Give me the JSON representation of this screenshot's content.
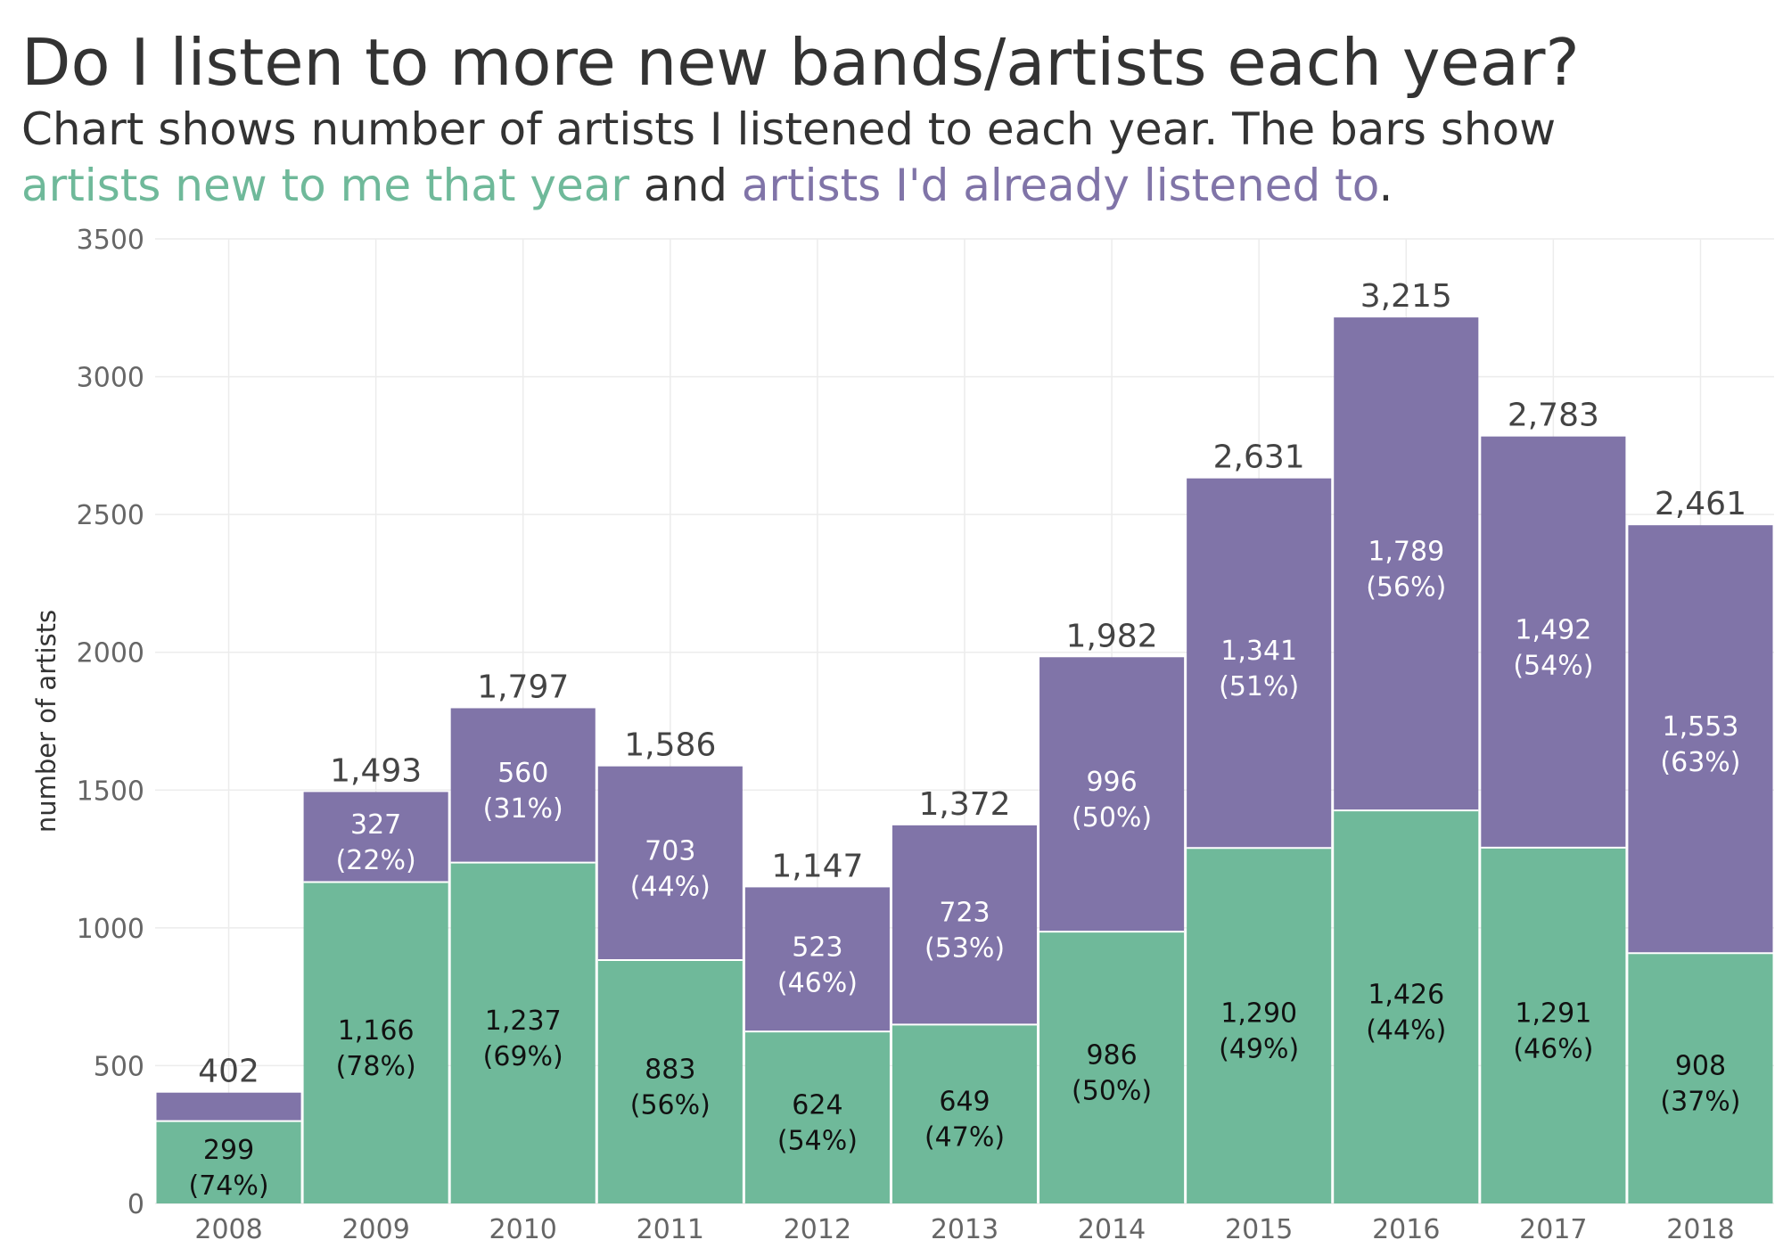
{
  "title": "Do I listen to more new bands/artists each year?",
  "subtitle_line1": "Chart shows number of artists I listened to each year. The bars show",
  "subtitle_line2": {
    "part1": "artists new to me that year",
    "part2": " and ",
    "part3": "artists I'd already listened to",
    "part4": "."
  },
  "colors": {
    "new": "#6fb99a",
    "old": "#8074a8",
    "text_dark": "#333333",
    "label_on_new": "#111111",
    "label_on_old": "#ffffff"
  },
  "chart_data": {
    "type": "bar",
    "stacked": true,
    "categories": [
      "2008",
      "2009",
      "2010",
      "2011",
      "2012",
      "2013",
      "2014",
      "2015",
      "2016",
      "2017",
      "2018"
    ],
    "series": [
      {
        "name": "artists new to me that year",
        "values": [
          299,
          1166,
          1237,
          883,
          624,
          649,
          986,
          1290,
          1426,
          1291,
          908
        ],
        "labels": [
          "299",
          "1,166",
          "1,237",
          "883",
          "624",
          "649",
          "986",
          "1,290",
          "1,426",
          "1,291",
          "908"
        ],
        "pct": [
          "(74%)",
          "(78%)",
          "(69%)",
          "(56%)",
          "(54%)",
          "(47%)",
          "(50%)",
          "(49%)",
          "(44%)",
          "(46%)",
          "(37%)"
        ]
      },
      {
        "name": "artists I'd already listened to",
        "values": [
          103,
          327,
          560,
          703,
          523,
          723,
          996,
          1341,
          1789,
          1492,
          1553
        ],
        "labels": [
          "",
          "327",
          "560",
          "703",
          "523",
          "723",
          "996",
          "1,341",
          "1,789",
          "1,492",
          "1,553"
        ],
        "pct": [
          "",
          "(22%)",
          "(31%)",
          "(44%)",
          "(46%)",
          "(53%)",
          "(50%)",
          "(51%)",
          "(56%)",
          "(54%)",
          "(63%)"
        ]
      }
    ],
    "totals": [
      "402",
      "1,493",
      "1,797",
      "1,586",
      "1,147",
      "1,372",
      "1,982",
      "2,631",
      "3,215",
      "2,783",
      "2,461"
    ],
    "ylabel": "number of artists",
    "xlabel": "",
    "ylim": [
      0,
      3500
    ],
    "yticks": [
      0,
      500,
      1000,
      1500,
      2000,
      2500,
      3000,
      3500
    ],
    "grid": true,
    "legend": "in-subtitle"
  }
}
